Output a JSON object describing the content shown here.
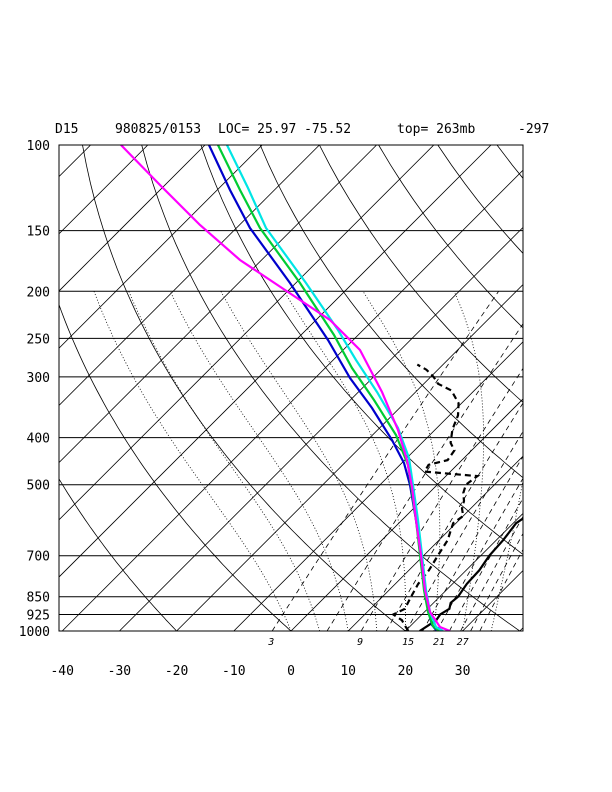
{
  "header": {
    "station": "D15",
    "datetime": "980825/0153",
    "location": "LOC= 25.97   -75.52",
    "top": "top= 263mb",
    "extra": "-297"
  },
  "chart_data": {
    "type": "skew-t log-p sounding",
    "pressure_levels": [
      100,
      150,
      200,
      250,
      300,
      400,
      500,
      700,
      850,
      925,
      1000
    ],
    "pressure_labels": [
      "100",
      "150",
      "200",
      "250",
      "300",
      "400",
      "500",
      "700",
      "850",
      "925",
      "1000"
    ],
    "temperature_ticks": [
      -40,
      -30,
      -20,
      -10,
      0,
      10,
      20,
      30
    ],
    "temperature_labels": [
      "-40",
      "-30",
      "-20",
      "-10",
      "0",
      "10",
      "20",
      "30"
    ],
    "mixing_ratio_labels": [
      "3",
      "9",
      "15",
      "21",
      "27"
    ],
    "xlim": [
      -40,
      40
    ],
    "ylim": [
      1000,
      100
    ],
    "series": [
      {
        "color": "#000000",
        "style": "solid",
        "points": [
          [
            1000,
            22.5
          ],
          [
            975,
            23.0
          ],
          [
            950,
            23.5
          ],
          [
            925,
            23.2
          ],
          [
            900,
            23.8
          ],
          [
            875,
            23.0
          ],
          [
            850,
            23.2
          ],
          [
            800,
            22.5
          ],
          [
            750,
            22.3
          ],
          [
            700,
            21.5
          ],
          [
            650,
            21.2
          ],
          [
            600,
            20.5
          ],
          [
            550,
            22.0
          ],
          [
            520,
            21.3
          ],
          [
            500,
            20.0
          ],
          [
            450,
            18.0
          ],
          [
            425,
            15.5
          ],
          [
            400,
            13.7
          ],
          [
            380,
            13.0
          ],
          [
            350,
            12.0
          ],
          [
            320,
            11.5
          ],
          [
            300,
            10.7
          ],
          [
            280,
            10.2
          ],
          [
            260,
            9.5
          ],
          [
            240,
            8.5
          ],
          [
            220,
            7.0
          ],
          [
            200,
            5.5
          ],
          [
            185,
            5.0
          ],
          [
            170,
            4.0
          ],
          [
            155,
            3.0
          ],
          [
            140,
            2.0
          ],
          [
            125,
            0.5
          ],
          [
            110,
            -0.5
          ],
          [
            100,
            -1.0
          ]
        ]
      },
      {
        "color": "#000000",
        "style": "dashed",
        "points": [
          [
            1000,
            20.5
          ],
          [
            975,
            19.0
          ],
          [
            950,
            17.5
          ],
          [
            925,
            15.0
          ],
          [
            900,
            16.0
          ],
          [
            850,
            15.0
          ],
          [
            800,
            14.0
          ],
          [
            750,
            13.5
          ],
          [
            700,
            12.5
          ],
          [
            650,
            11.5
          ],
          [
            625,
            10.5
          ],
          [
            600,
            9.5
          ],
          [
            580,
            10.0
          ],
          [
            560,
            8.5
          ],
          [
            540,
            7.5
          ],
          [
            520,
            6.0
          ],
          [
            500,
            5.0
          ],
          [
            480,
            5.5
          ],
          [
            470,
            -4.5
          ],
          [
            455,
            -5.0
          ],
          [
            445,
            -2.5
          ],
          [
            425,
            -3.0
          ],
          [
            410,
            -5.0
          ],
          [
            385,
            -7.0
          ],
          [
            360,
            -8.5
          ],
          [
            340,
            -10.5
          ],
          [
            320,
            -14.0
          ],
          [
            310,
            -17.5
          ],
          [
            300,
            -19.5
          ],
          [
            290,
            -22.0
          ],
          [
            283,
            -24.5
          ]
        ]
      },
      {
        "color": "#ff00ff",
        "style": "solid",
        "points": []
      },
      {
        "color": "#00cc33",
        "style": "solid",
        "points": []
      },
      {
        "color": "#00e5e5",
        "style": "solid",
        "points": []
      },
      {
        "color": "#0000cc",
        "style": "solid",
        "points": []
      }
    ]
  }
}
